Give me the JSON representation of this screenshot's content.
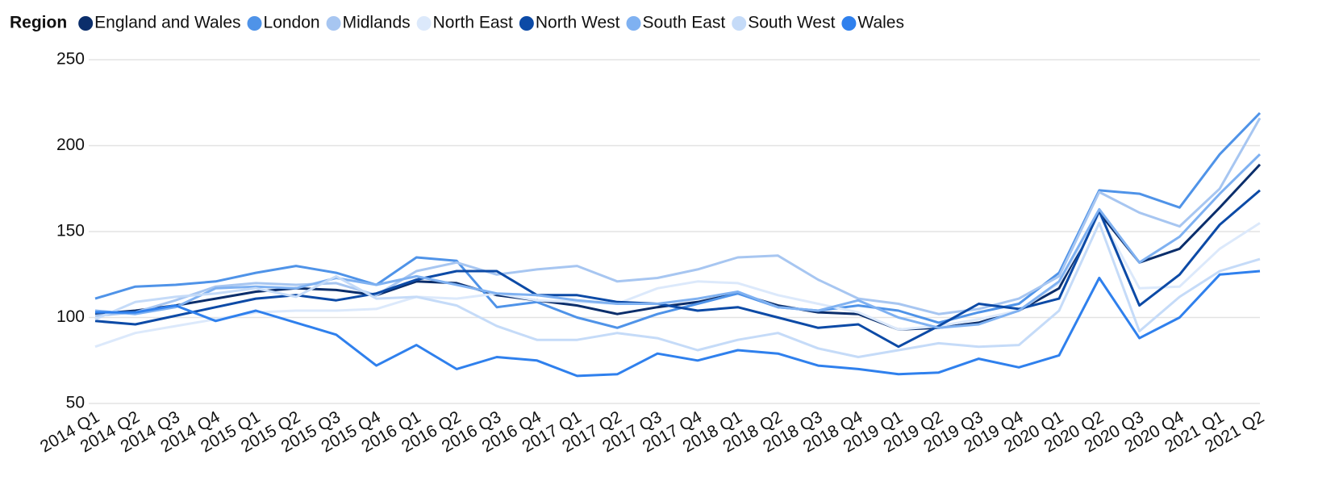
{
  "chart_data": {
    "type": "line",
    "legend_title": "Region",
    "legend_position": "top-left",
    "categories": [
      "2014 Q1",
      "2014 Q2",
      "2014 Q3",
      "2014 Q4",
      "2015 Q1",
      "2015 Q2",
      "2015 Q3",
      "2015 Q4",
      "2016 Q1",
      "2016 Q2",
      "2016 Q3",
      "2016 Q4",
      "2017 Q1",
      "2017 Q2",
      "2017 Q3",
      "2017 Q4",
      "2018 Q1",
      "2018 Q2",
      "2018 Q3",
      "2018 Q4",
      "2019 Q1",
      "2019 Q2",
      "2019 Q3",
      "2019 Q4",
      "2020 Q1",
      "2020 Q2",
      "2020 Q3",
      "2020 Q4",
      "2021 Q1",
      "2021 Q2"
    ],
    "ylim": [
      50,
      250
    ],
    "yticks": [
      50,
      100,
      150,
      200,
      250
    ],
    "grid": true,
    "series": [
      {
        "name": "England and Wales",
        "color": "#0b2e6b",
        "values": [
          102,
          104,
          107,
          111,
          115,
          117,
          116,
          113,
          121,
          120,
          113,
          110,
          107,
          102,
          106,
          109,
          114,
          107,
          103,
          102,
          93,
          94,
          97,
          104,
          117,
          161,
          132,
          140,
          164,
          189
        ]
      },
      {
        "name": "London",
        "color": "#4f93e8",
        "values": [
          111,
          118,
          119,
          121,
          126,
          130,
          126,
          119,
          135,
          133,
          106,
          109,
          100,
          94,
          102,
          108,
          114,
          106,
          104,
          107,
          104,
          97,
          103,
          108,
          126,
          174,
          172,
          164,
          195,
          219
        ]
      },
      {
        "name": "Midlands",
        "color": "#a7c6f1",
        "values": [
          101,
          103,
          110,
          118,
          120,
          119,
          120,
          113,
          127,
          132,
          125,
          128,
          130,
          121,
          123,
          128,
          135,
          136,
          122,
          111,
          108,
          102,
          105,
          111,
          124,
          173,
          161,
          153,
          175,
          216
        ]
      },
      {
        "name": "North East",
        "color": "#dce9fb",
        "values": [
          83,
          91,
          95,
          99,
          103,
          104,
          104,
          105,
          112,
          111,
          114,
          110,
          109,
          108,
          117,
          121,
          120,
          113,
          108,
          103,
          93,
          95,
          99,
          104,
          120,
          160,
          117,
          118,
          140,
          155
        ]
      },
      {
        "name": "North West",
        "color": "#0c4aa6",
        "values": [
          98,
          96,
          101,
          106,
          111,
          113,
          110,
          114,
          122,
          127,
          127,
          113,
          113,
          109,
          108,
          104,
          106,
          100,
          94,
          96,
          83,
          95,
          108,
          105,
          111,
          162,
          107,
          125,
          154,
          174
        ]
      },
      {
        "name": "South East",
        "color": "#7fb1f1",
        "values": [
          104,
          102,
          106,
          117,
          118,
          117,
          123,
          119,
          124,
          119,
          114,
          113,
          110,
          108,
          108,
          111,
          115,
          106,
          104,
          110,
          100,
          94,
          96,
          104,
          121,
          163,
          132,
          147,
          172,
          195
        ]
      },
      {
        "name": "South West",
        "color": "#c5dbf8",
        "values": [
          99,
          109,
          112,
          114,
          117,
          112,
          124,
          111,
          112,
          107,
          95,
          87,
          87,
          91,
          88,
          81,
          87,
          91,
          82,
          77,
          81,
          85,
          83,
          84,
          104,
          155,
          92,
          112,
          127,
          134
        ]
      },
      {
        "name": "Wales",
        "color": "#2f80ed",
        "values": [
          103,
          103,
          107,
          98,
          104,
          97,
          90,
          72,
          84,
          70,
          77,
          75,
          66,
          67,
          79,
          75,
          81,
          79,
          72,
          70,
          67,
          68,
          76,
          71,
          78,
          123,
          88,
          100,
          125,
          127
        ]
      }
    ]
  }
}
